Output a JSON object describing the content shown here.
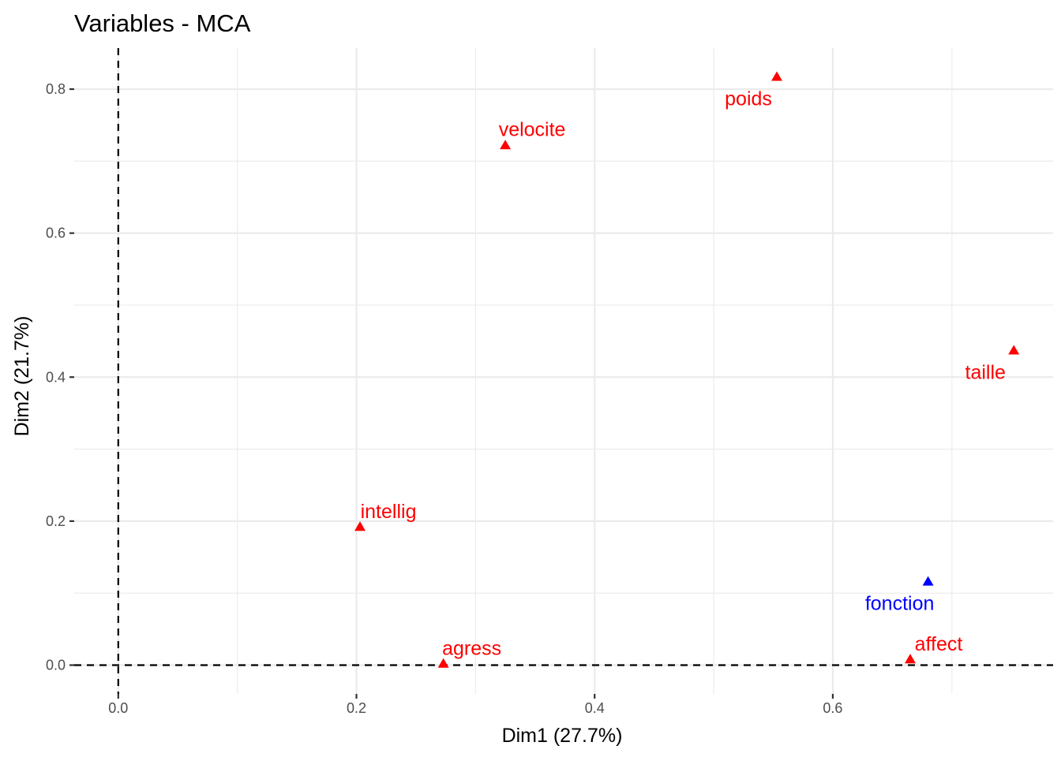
{
  "chart_data": {
    "type": "scatter",
    "title": "Variables - MCA",
    "xlabel": "Dim1 (27.7%)",
    "ylabel": "Dim2 (21.7%)",
    "xlim": [
      -0.037,
      0.785
    ],
    "ylim": [
      -0.04,
      0.857
    ],
    "x_ticks": [
      0.0,
      0.2,
      0.4,
      0.6
    ],
    "x_tick_labels": [
      "0.0",
      "0.2",
      "0.4",
      "0.6"
    ],
    "y_ticks": [
      0.0,
      0.2,
      0.4,
      0.6,
      0.8
    ],
    "y_tick_labels": [
      "0.0",
      "0.2",
      "0.4",
      "0.6",
      "0.8"
    ],
    "x_minor": [
      0.1,
      0.3,
      0.5,
      0.7
    ],
    "y_minor": [
      0.1,
      0.3,
      0.5,
      0.7
    ],
    "grid": true,
    "reference_lines": {
      "x": 0,
      "y": 0,
      "style": "dashed"
    },
    "colors": {
      "active": "#ff0000",
      "supplementary": "#0000ff"
    },
    "points": [
      {
        "label": "velocite",
        "x": 0.325,
        "y": 0.722,
        "group": "active",
        "label_pos": "above"
      },
      {
        "label": "poids",
        "x": 0.553,
        "y": 0.817,
        "group": "active",
        "label_pos": "below-left"
      },
      {
        "label": "taille",
        "x": 0.752,
        "y": 0.437,
        "group": "active",
        "label_pos": "below-left"
      },
      {
        "label": "intellig",
        "x": 0.203,
        "y": 0.192,
        "group": "active",
        "label_pos": "above-right"
      },
      {
        "label": "agress",
        "x": 0.273,
        "y": 0.002,
        "group": "active",
        "label_pos": "above-right"
      },
      {
        "label": "affect",
        "x": 0.665,
        "y": 0.008,
        "group": "active",
        "label_pos": "above-right"
      },
      {
        "label": "fonction",
        "x": 0.68,
        "y": 0.116,
        "group": "supplementary",
        "label_pos": "below-left"
      }
    ]
  }
}
